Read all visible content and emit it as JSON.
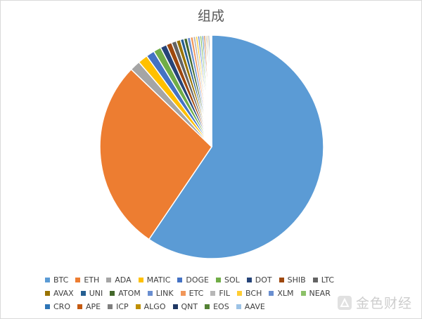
{
  "chart_data": {
    "type": "pie",
    "title": "组成",
    "categories": [
      "BTC",
      "ETH",
      "ADA",
      "MATIC",
      "DOGE",
      "SOL",
      "DOT",
      "SHIB",
      "LTC",
      "AVAX",
      "UNI",
      "ATOM",
      "LINK",
      "ETC",
      "FIL",
      "BCH",
      "XLM",
      "NEAR",
      "CRO",
      "APE",
      "ICP",
      "ALGO",
      "QNT",
      "EOS",
      "AAVE"
    ],
    "values": [
      59.0,
      27.5,
      1.5,
      1.4,
      1.2,
      1.1,
      0.9,
      0.8,
      0.7,
      0.6,
      0.5,
      0.5,
      0.45,
      0.4,
      0.35,
      0.3,
      0.3,
      0.3,
      0.25,
      0.25,
      0.2,
      0.2,
      0.2,
      0.15,
      0.15
    ],
    "colors": [
      "#5b9bd5",
      "#ed7d31",
      "#a5a5a5",
      "#ffc000",
      "#4472c4",
      "#70ad47",
      "#264478",
      "#9e480e",
      "#636363",
      "#997300",
      "#255e91",
      "#43682b",
      "#698ed0",
      "#f1975a",
      "#b7b7b7",
      "#ffcd33",
      "#6a8fd0",
      "#8cc168",
      "#2e75b6",
      "#c55a11",
      "#7f7f7f",
      "#bf9000",
      "#203864",
      "#548235",
      "#9dc3e6"
    ],
    "legend_position": "bottom"
  },
  "watermark": {
    "text": "金色财经",
    "icon": "golden-finance-logo-icon"
  }
}
